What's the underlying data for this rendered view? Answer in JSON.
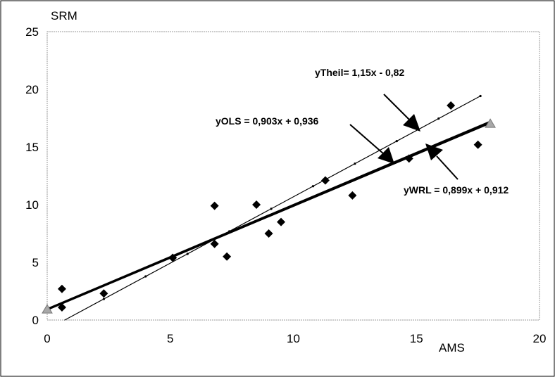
{
  "chart_data": {
    "type": "scatter",
    "title": "",
    "xlabel": "AMS",
    "ylabel": "SRM",
    "xlim": [
      0,
      20
    ],
    "ylim": [
      0,
      25
    ],
    "xticks": [
      "0",
      "5",
      "10",
      "15",
      "20"
    ],
    "yticks": [
      "0",
      "5",
      "10",
      "15",
      "20",
      "25"
    ],
    "grid": false,
    "points": [
      {
        "x": 0.6,
        "y": 2.7
      },
      {
        "x": 0.6,
        "y": 1.1
      },
      {
        "x": 2.3,
        "y": 2.3
      },
      {
        "x": 5.1,
        "y": 5.4
      },
      {
        "x": 6.8,
        "y": 9.9
      },
      {
        "x": 6.8,
        "y": 6.6
      },
      {
        "x": 7.3,
        "y": 5.5
      },
      {
        "x": 8.5,
        "y": 10.0
      },
      {
        "x": 9.0,
        "y": 7.5
      },
      {
        "x": 9.5,
        "y": 8.5
      },
      {
        "x": 11.3,
        "y": 12.1
      },
      {
        "x": 12.4,
        "y": 10.8
      },
      {
        "x": 14.7,
        "y": 14.0
      },
      {
        "x": 16.4,
        "y": 18.6
      },
      {
        "x": 17.5,
        "y": 15.2
      }
    ],
    "endpoints": [
      {
        "x": 0.0,
        "y": 0.9
      },
      {
        "x": 18.0,
        "y": 17.0
      }
    ],
    "lines": [
      {
        "equation": "yTheil= 1,15x - 0,82",
        "slope": 1.15,
        "intercept": -0.82,
        "x_range": [
          0.7,
          17.6
        ],
        "weight": "thin"
      },
      {
        "equation": "yOLS = 0,903x + 0,936",
        "slope": 0.903,
        "intercept": 0.936,
        "x_range": [
          0,
          18
        ],
        "weight": "thick"
      },
      {
        "equation": "yWRL = 0,899x + 0,912",
        "slope": 0.899,
        "intercept": 0.912,
        "x_range": [
          0,
          18
        ],
        "weight": "thick"
      }
    ],
    "colors": {
      "marker": "#000000",
      "endpoint_marker": "#a8a8a8",
      "plot_border": "#9a9a9a",
      "frame": "#000000"
    }
  }
}
